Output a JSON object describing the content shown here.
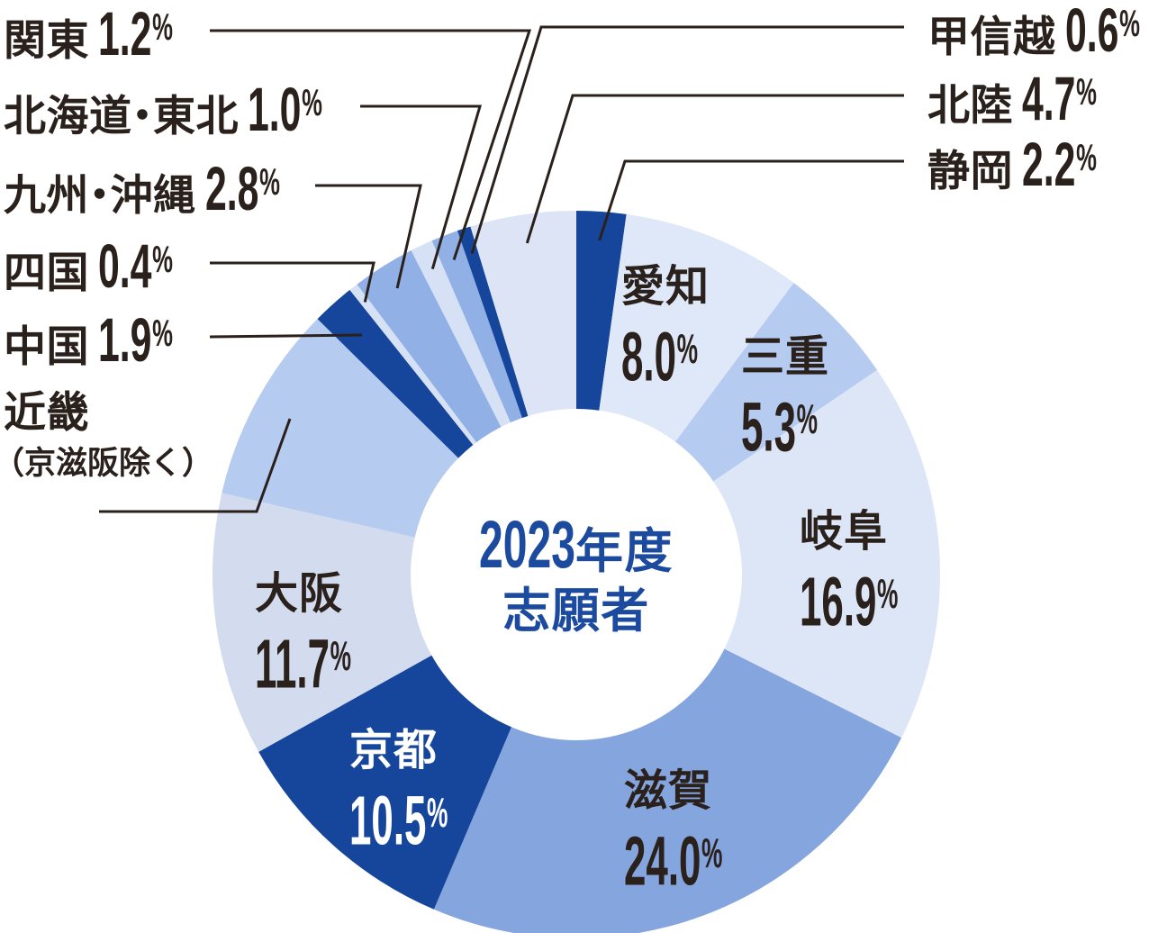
{
  "chart_data": {
    "type": "donut",
    "title": "2023年度志願者",
    "center_label_lines": [
      "2023年度",
      "志願者"
    ],
    "unit": "%",
    "start_at_top": true,
    "clockwise": true,
    "background": "#ffffff",
    "text_color": "#2a211c",
    "center_text_color": "#1b4a9e",
    "line_color": "#2a211c",
    "segments": [
      {
        "name": "静岡",
        "value": 2.2,
        "color": "#16469c",
        "label_placement": "outside-right",
        "show_value": true
      },
      {
        "name": "愛知",
        "value": 8.0,
        "color": "#dfe8f8",
        "label_placement": "inside",
        "show_value": true
      },
      {
        "name": "三重",
        "value": 5.3,
        "color": "#b6cbf0",
        "label_placement": "inside",
        "show_value": true
      },
      {
        "name": "岐阜",
        "value": 16.9,
        "color": "#dde6f7",
        "label_placement": "inside",
        "show_value": true
      },
      {
        "name": "滋賀",
        "value": 24.0,
        "color": "#84a5de",
        "label_placement": "inside",
        "show_value": true
      },
      {
        "name": "京都",
        "value": 10.5,
        "color": "#16469c",
        "label_placement": "inside",
        "show_value": true,
        "label_color": "#ffffff"
      },
      {
        "name": "大阪",
        "value": 11.7,
        "color": "#d3dbee",
        "label_placement": "inside",
        "show_value": true
      },
      {
        "name": "近畿",
        "value": 8.8,
        "color": "#b6cbf0",
        "label_placement": "outside-left",
        "show_value": false,
        "sub": "（京滋阪除く）"
      },
      {
        "name": "中国",
        "value": 1.9,
        "color": "#16469c",
        "label_placement": "outside-left",
        "show_value": true
      },
      {
        "name": "四国",
        "value": 0.4,
        "color": "#d7e1f6",
        "label_placement": "outside-left",
        "show_value": true
      },
      {
        "name": "九州・沖縄",
        "value": 2.8,
        "color": "#91b1e6",
        "label_placement": "outside-left",
        "show_value": true
      },
      {
        "name": "北海道・東北",
        "value": 1.0,
        "color": "#d7e1f6",
        "label_placement": "outside-left",
        "show_value": true
      },
      {
        "name": "関東",
        "value": 1.2,
        "color": "#91b1e6",
        "label_placement": "outside-left",
        "show_value": true
      },
      {
        "name": "甲信越",
        "value": 0.6,
        "color": "#16469c",
        "label_placement": "outside-right",
        "show_value": true
      },
      {
        "name": "北陸",
        "value": 4.7,
        "color": "#dce4f6",
        "label_placement": "outside-right",
        "show_value": true
      }
    ]
  }
}
